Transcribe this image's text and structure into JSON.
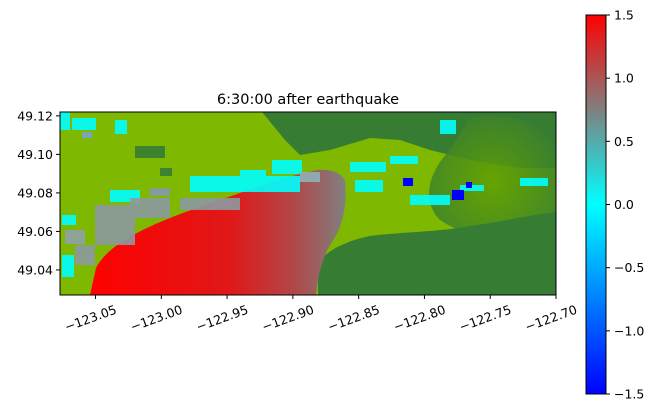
{
  "chart_data": {
    "type": "heatmap",
    "title": "6:30:00 after earthquake",
    "xlabel": "",
    "ylabel": "",
    "xlim": [
      -123.077,
      -122.7
    ],
    "ylim": [
      49.027,
      49.122
    ],
    "x_ticks": [
      -123.05,
      -123.0,
      -122.95,
      -122.9,
      -122.85,
      -122.8,
      -122.75,
      -122.7
    ],
    "x_tick_labels": [
      "−123.05",
      "−123.00",
      "−122.95",
      "−122.90",
      "−122.85",
      "−122.80",
      "−122.75",
      "−122.70"
    ],
    "y_ticks": [
      49.04,
      49.06,
      49.08,
      49.1,
      49.12
    ],
    "y_tick_labels": [
      "49.04",
      "49.06",
      "49.08",
      "49.10",
      "49.12"
    ],
    "grid": false,
    "colorbar": {
      "vmin": -1.5,
      "vmax": 1.5,
      "ticks": [
        -1.5,
        -1.0,
        -0.5,
        0.0,
        0.5,
        1.0,
        1.5
      ],
      "tick_labels": [
        "−1.5",
        "−1.0",
        "−0.5",
        "0.0",
        "0.5",
        "1.0",
        "1.5"
      ],
      "colors": [
        {
          "value": -1.5,
          "color": "#0000ff"
        },
        {
          "value": -0.75,
          "color": "#0080ff"
        },
        {
          "value": 0.0,
          "color": "#00ffff"
        },
        {
          "value": 0.75,
          "color": "#808080"
        },
        {
          "value": 1.5,
          "color": "#ff0000"
        }
      ]
    },
    "land_colors": {
      "lowland": "#7fb800",
      "highland": "#367d33"
    },
    "regions": [
      {
        "name": "land-lowland",
        "color": "#7fb800"
      },
      {
        "name": "land-highland",
        "color": "#367d33"
      },
      {
        "name": "water",
        "value_range": [
          0.0,
          1.5
        ]
      },
      {
        "name": "flooded-cells",
        "value_range": [
          -1.5,
          0.5
        ]
      }
    ]
  }
}
